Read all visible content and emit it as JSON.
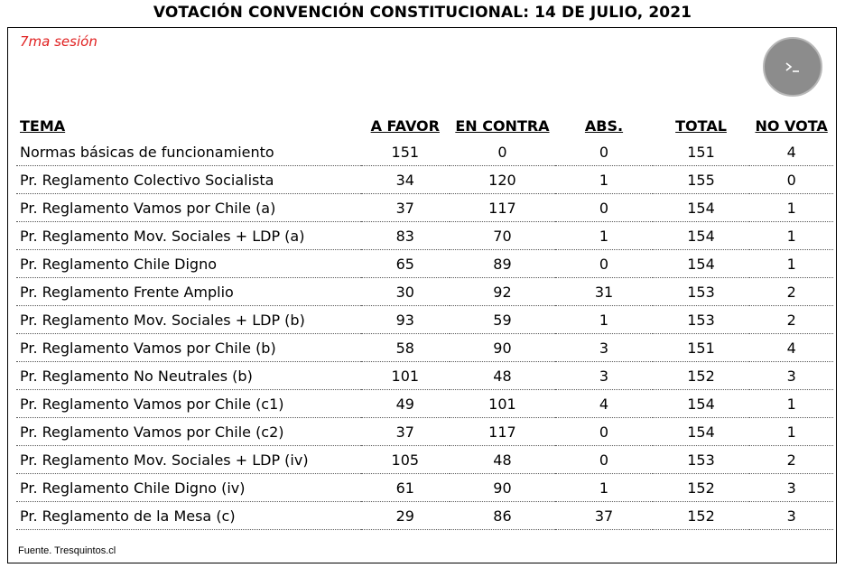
{
  "title": "VOTACIÓN CONVENCIÓN CONSTITUCIONAL: 14 DE JULIO, 2021",
  "session": "7ma sesión",
  "terminal_icon": "terminal-icon",
  "headers": {
    "tema": "TEMA",
    "a_favor": "A FAVOR",
    "en_contra": "EN CONTRA",
    "abs": "ABS.",
    "total": "TOTAL",
    "no_vota": "NO VOTA"
  },
  "rows": [
    {
      "tema": "Normas básicas de funcionamiento",
      "a_favor": "151",
      "en_contra": "0",
      "abs": "0",
      "total": "151",
      "no_vota": "4"
    },
    {
      "tema": "Pr. Reglamento Colectivo Socialista",
      "a_favor": "34",
      "en_contra": "120",
      "abs": "1",
      "total": "155",
      "no_vota": "0"
    },
    {
      "tema": "Pr. Reglamento Vamos por Chile (a)",
      "a_favor": "37",
      "en_contra": "117",
      "abs": "0",
      "total": "154",
      "no_vota": "1"
    },
    {
      "tema": "Pr. Reglamento Mov. Sociales + LDP (a)",
      "a_favor": "83",
      "en_contra": "70",
      "abs": "1",
      "total": "154",
      "no_vota": "1"
    },
    {
      "tema": "Pr. Reglamento Chile Digno",
      "a_favor": "65",
      "en_contra": "89",
      "abs": "0",
      "total": "154",
      "no_vota": "1"
    },
    {
      "tema": "Pr. Reglamento Frente Amplio",
      "a_favor": "30",
      "en_contra": "92",
      "abs": "31",
      "total": "153",
      "no_vota": "2"
    },
    {
      "tema": "Pr. Reglamento Mov. Sociales + LDP (b)",
      "a_favor": "93",
      "en_contra": "59",
      "abs": "1",
      "total": "153",
      "no_vota": "2"
    },
    {
      "tema": "Pr. Reglamento Vamos por Chile (b)",
      "a_favor": "58",
      "en_contra": "90",
      "abs": "3",
      "total": "151",
      "no_vota": "4"
    },
    {
      "tema": "Pr. Reglamento No Neutrales (b)",
      "a_favor": "101",
      "en_contra": "48",
      "abs": "3",
      "total": "152",
      "no_vota": "3"
    },
    {
      "tema": "Pr. Reglamento Vamos por Chile (c1)",
      "a_favor": "49",
      "en_contra": "101",
      "abs": "4",
      "total": "154",
      "no_vota": "1"
    },
    {
      "tema": "Pr. Reglamento Vamos por Chile (c2)",
      "a_favor": "37",
      "en_contra": "117",
      "abs": "0",
      "total": "154",
      "no_vota": "1"
    },
    {
      "tema": "Pr. Reglamento Mov. Sociales + LDP (iv)",
      "a_favor": "105",
      "en_contra": "48",
      "abs": "0",
      "total": "153",
      "no_vota": "2"
    },
    {
      "tema": "Pr. Reglamento Chile Digno (iv)",
      "a_favor": "61",
      "en_contra": "90",
      "abs": "1",
      "total": "152",
      "no_vota": "3"
    },
    {
      "tema": "Pr. Reglamento de la Mesa (c)",
      "a_favor": "29",
      "en_contra": "86",
      "abs": "37",
      "total": "152",
      "no_vota": "3"
    }
  ],
  "source": "Fuente. Tresquintos.cl",
  "colors": {
    "session_text": "#e02020",
    "button_bg": "#8c8c8c"
  }
}
